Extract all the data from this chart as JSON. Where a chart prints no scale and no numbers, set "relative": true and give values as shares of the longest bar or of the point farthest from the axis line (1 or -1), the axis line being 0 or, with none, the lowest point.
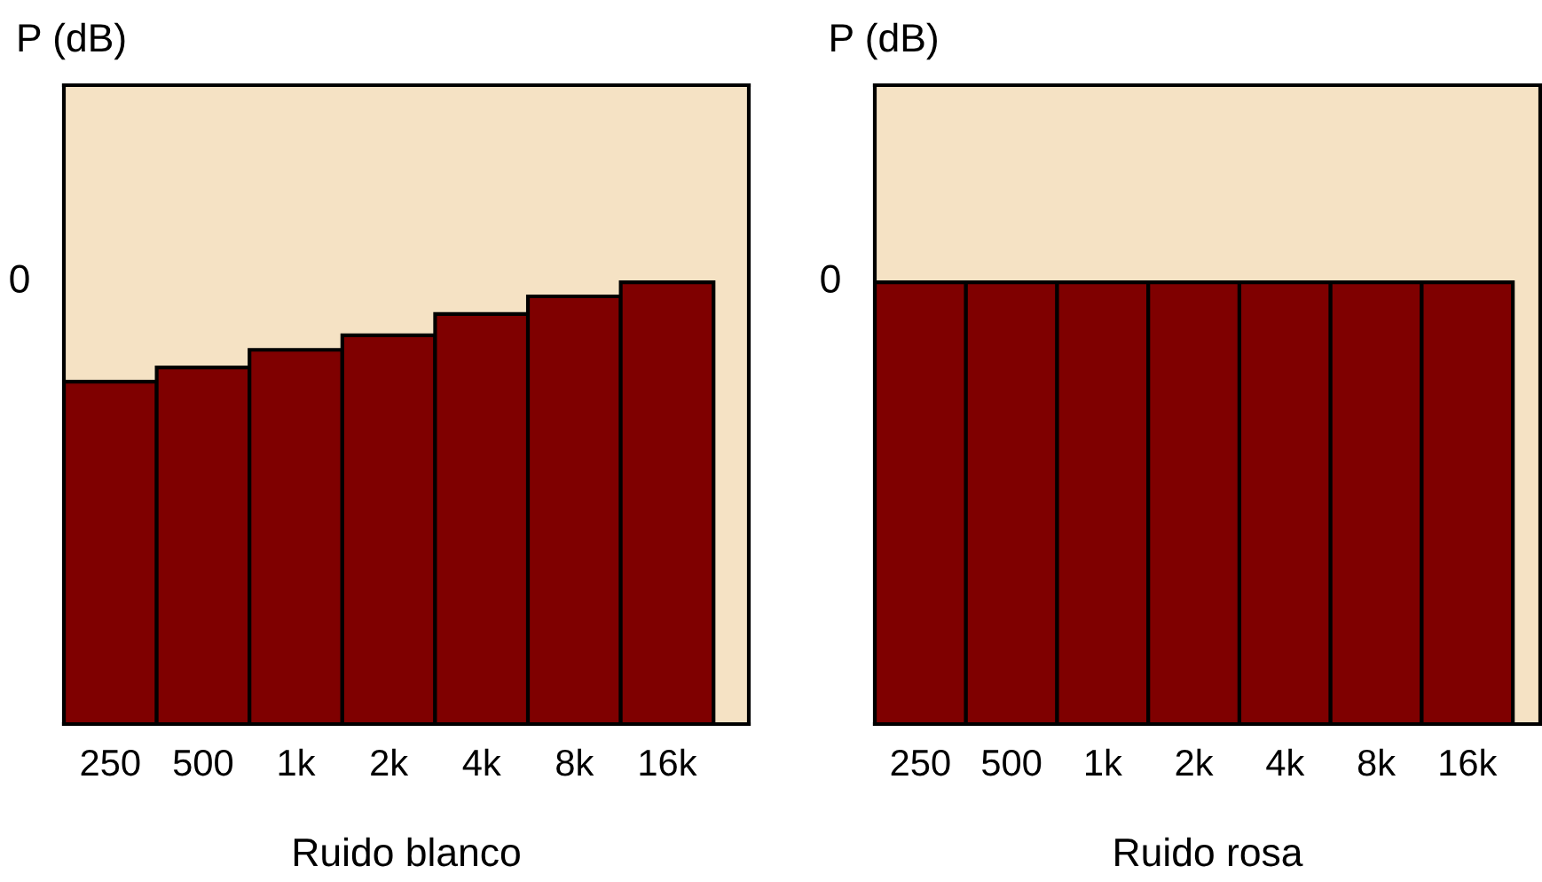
{
  "chart_data": [
    {
      "type": "bar",
      "relative": true,
      "xlabel": "Ruido blanco",
      "ylabel": "P (dB)",
      "categories": [
        "250",
        "500",
        "1k",
        "2k",
        "4k",
        "8k",
        "16k"
      ],
      "color": "#7f0000",
      "values": [
        0.775,
        0.807,
        0.847,
        0.88,
        0.928,
        0.968,
        1
      ],
      "annotations": [
        "0"
      ],
      "grid": false,
      "legend": false
    },
    {
      "type": "bar",
      "relative": true,
      "xlabel": "Ruido rosa",
      "ylabel": "P (dB)",
      "categories": [
        "250",
        "500",
        "1k",
        "2k",
        "4k",
        "8k",
        "16k"
      ],
      "color": "#7f0000",
      "values": [
        1,
        1,
        1,
        1,
        1,
        1,
        1
      ],
      "annotations": [
        "0"
      ],
      "grid": false,
      "legend": false
    }
  ]
}
